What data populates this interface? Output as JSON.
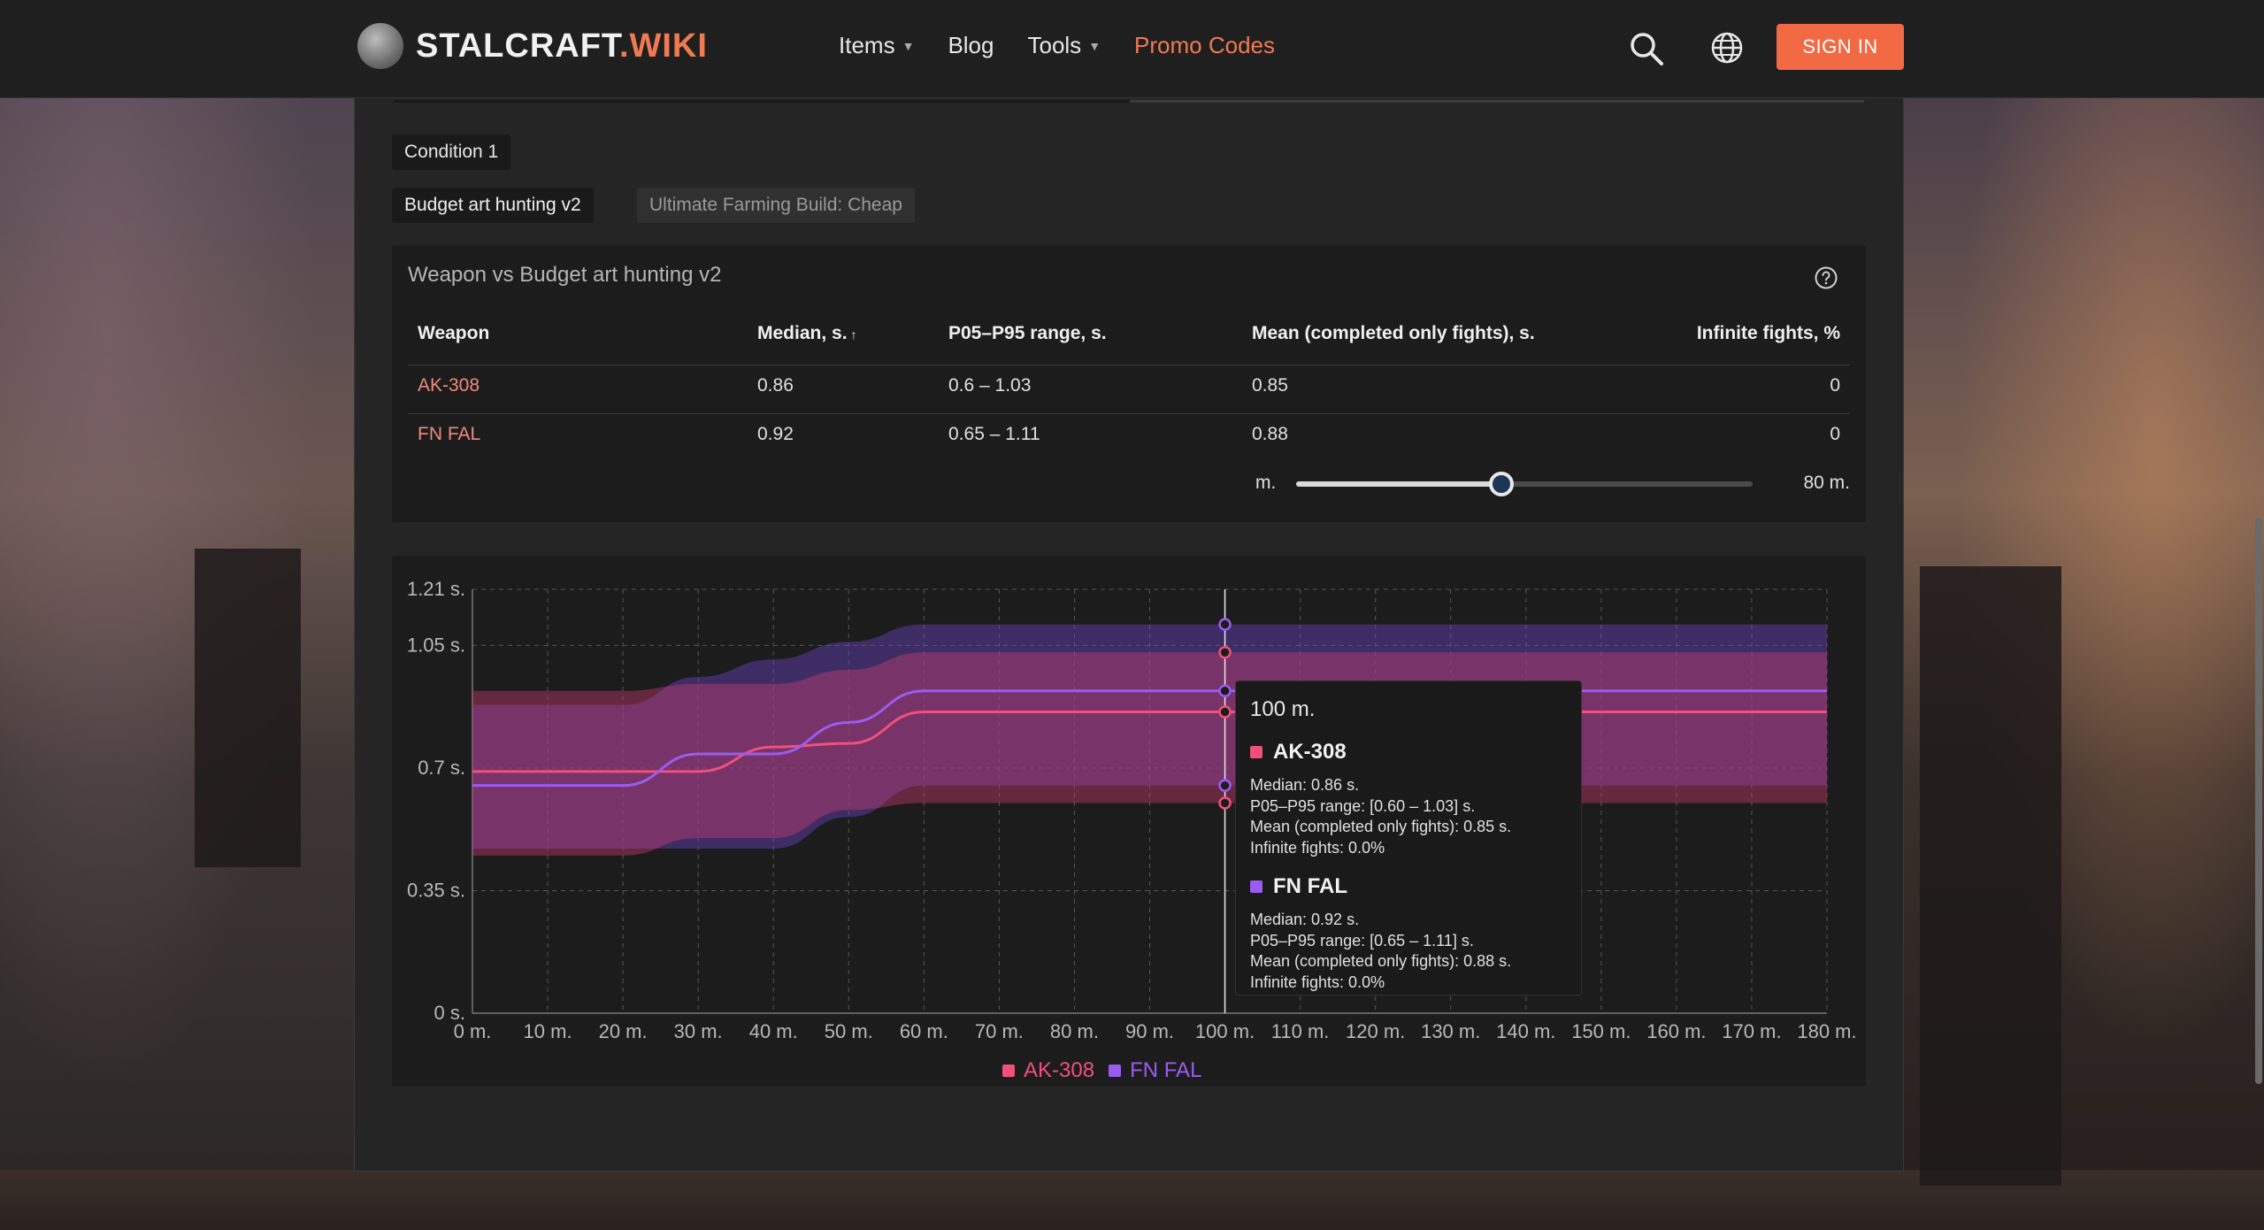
{
  "site": {
    "brand_main": "STALCRAFT",
    "brand_dot": ".",
    "brand_suffix": "WIKI"
  },
  "nav": {
    "items": [
      {
        "label": "Items",
        "has_caret": true
      },
      {
        "label": "Blog",
        "has_caret": false
      },
      {
        "label": "Tools",
        "has_caret": true
      },
      {
        "label": "Promo Codes",
        "has_caret": false
      }
    ],
    "signin_label": "SIGN IN"
  },
  "filters": {
    "condition_label": "Condition 1",
    "builds": [
      "Budget art hunting v2",
      "Ultimate Farming Build: Cheap"
    ],
    "active_build_index": 0
  },
  "table": {
    "title": "Weapon vs Budget art hunting v2",
    "headers": {
      "weapon": "Weapon",
      "median": "Median, s.",
      "median_sort": "↑",
      "range": "P05–P95 range, s.",
      "mean": "Mean (completed only fights), s.",
      "infinite": "Infinite fights, %"
    },
    "rows": [
      {
        "weapon": "AK-308",
        "median": "0.86",
        "range": "0.6 – 1.03",
        "mean": "0.85",
        "infinite": "0"
      },
      {
        "weapon": "FN FAL",
        "median": "0.92",
        "range": "0.65 – 1.11",
        "mean": "0.88",
        "infinite": "0"
      }
    ],
    "slider": {
      "min_label": "m.",
      "max_label": "80 m.",
      "fraction": 0.45
    }
  },
  "colors": {
    "accent": "#f26a43",
    "ak308": "#f0507a",
    "fnfal": "#9a5cf0"
  },
  "chart_data": {
    "type": "area",
    "xlabel": "",
    "ylabel": "",
    "x": [
      0,
      10,
      20,
      30,
      40,
      50,
      60,
      70,
      80,
      90,
      100,
      110,
      120,
      130,
      140,
      150,
      160,
      170,
      180
    ],
    "x_tick_labels": [
      "0 m.",
      "10 m.",
      "20 m.",
      "30 m.",
      "40 m.",
      "50 m.",
      "60 m.",
      "70 m.",
      "80 m.",
      "90 m.",
      "100 m.",
      "110 m.",
      "120 m.",
      "130 m.",
      "140 m.",
      "150 m.",
      "160 m.",
      "170 m.",
      "180 m."
    ],
    "y_ticks": [
      0,
      0.35,
      0.7,
      1.05,
      1.21
    ],
    "y_tick_labels": [
      "0 s.",
      "0.35 s.",
      "0.7 s.",
      "1.05 s.",
      "1.21 s."
    ],
    "ylim": [
      0,
      1.21
    ],
    "xlim": [
      0,
      180
    ],
    "grid": true,
    "legend": "bottom-center",
    "series": [
      {
        "name": "AK-308",
        "median": [
          0.69,
          0.69,
          0.69,
          0.69,
          0.76,
          0.77,
          0.86,
          0.86,
          0.86,
          0.86,
          0.86,
          0.86,
          0.86,
          0.86,
          0.86,
          0.86,
          0.86,
          0.86,
          0.86
        ],
        "p05": [
          0.45,
          0.45,
          0.45,
          0.5,
          0.5,
          0.58,
          0.6,
          0.6,
          0.6,
          0.6,
          0.6,
          0.6,
          0.6,
          0.6,
          0.6,
          0.6,
          0.6,
          0.6,
          0.6
        ],
        "p95": [
          0.92,
          0.92,
          0.92,
          0.94,
          0.94,
          0.98,
          1.03,
          1.03,
          1.03,
          1.03,
          1.03,
          1.03,
          1.03,
          1.03,
          1.03,
          1.03,
          1.03,
          1.03,
          1.03
        ]
      },
      {
        "name": "FN FAL",
        "median": [
          0.65,
          0.65,
          0.65,
          0.74,
          0.74,
          0.83,
          0.92,
          0.92,
          0.92,
          0.92,
          0.92,
          0.92,
          0.92,
          0.92,
          0.92,
          0.92,
          0.92,
          0.92,
          0.92
        ],
        "p05": [
          0.47,
          0.47,
          0.47,
          0.47,
          0.47,
          0.56,
          0.65,
          0.65,
          0.65,
          0.65,
          0.65,
          0.65,
          0.65,
          0.65,
          0.65,
          0.65,
          0.65,
          0.65,
          0.65
        ],
        "p95": [
          0.88,
          0.88,
          0.88,
          0.96,
          1.01,
          1.06,
          1.11,
          1.11,
          1.11,
          1.11,
          1.11,
          1.11,
          1.11,
          1.11,
          1.11,
          1.11,
          1.11,
          1.11,
          1.11
        ]
      }
    ],
    "hover_x": 100
  },
  "tooltip": {
    "title": "100 m.",
    "entries": [
      {
        "name": "AK-308",
        "median": "Median: 0.86 s.",
        "range": "P05–P95 range: [0.60 – 1.03] s.",
        "mean": "Mean (completed only fights): 0.85 s.",
        "infinite": "Infinite fights: 0.0%"
      },
      {
        "name": "FN FAL",
        "median": "Median: 0.92 s.",
        "range": "P05–P95 range: [0.65 – 1.11] s.",
        "mean": "Mean (completed only fights): 0.88 s.",
        "infinite": "Infinite fights: 0.0%"
      }
    ]
  },
  "legend": {
    "items": [
      "AK-308",
      "FN FAL"
    ]
  }
}
